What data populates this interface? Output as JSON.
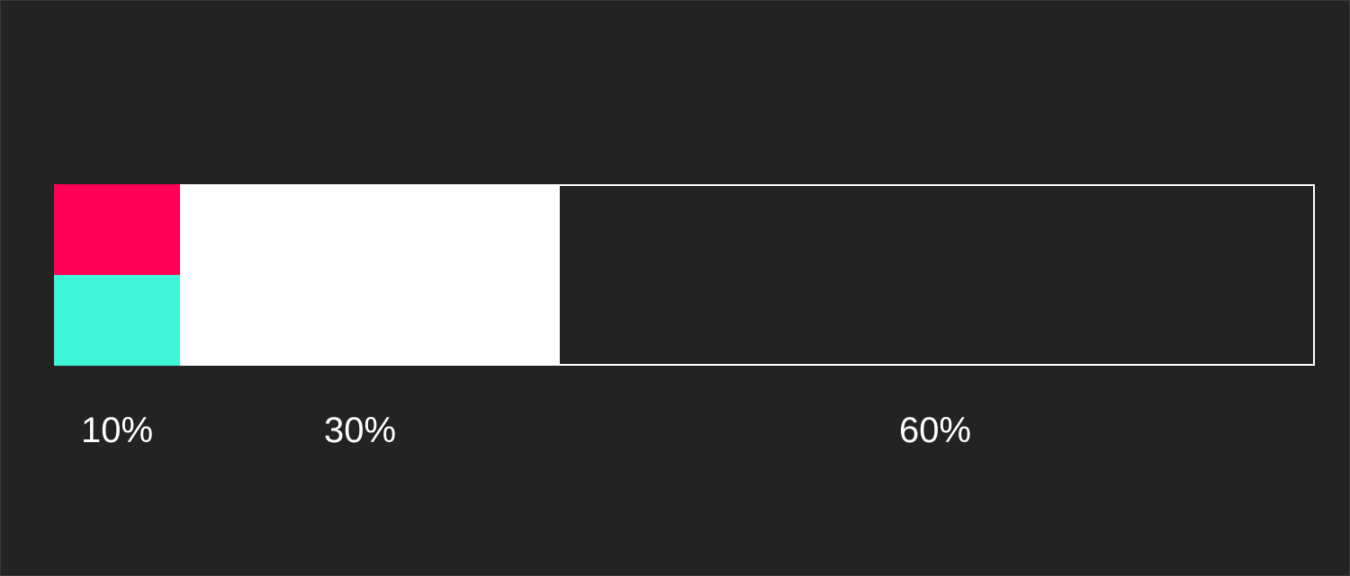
{
  "diagram": {
    "segments": [
      {
        "id": "segment-10",
        "label": "10%",
        "fraction": 0.1,
        "colors": [
          "#ff0055",
          "#3ef5d8"
        ]
      },
      {
        "id": "segment-30",
        "label": "30%",
        "fraction": 0.3,
        "colors": [
          "#ffffff"
        ]
      },
      {
        "id": "segment-60",
        "label": "60%",
        "fraction": 0.6,
        "colors": [
          "#232323"
        ],
        "outline": "#ffffff"
      }
    ]
  },
  "colors": {
    "background": "#232323",
    "text": "#ffffff"
  }
}
